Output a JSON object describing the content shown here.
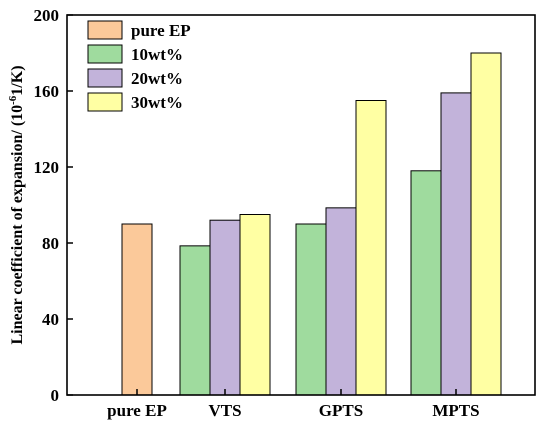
{
  "chart_data": {
    "type": "bar",
    "title": "",
    "xlabel": "",
    "ylabel": "Linear coefficient of expansion/ (10",
    "ylabel_sup": "-6",
    "ylabel_tail": "1/K)",
    "ylim": [
      0,
      200
    ],
    "yticks": [
      0,
      40,
      80,
      120,
      160,
      200
    ],
    "categories": [
      "pure EP",
      "VTS",
      "GPTS",
      "MPTS"
    ],
    "legend_position": "top-left",
    "grid": false,
    "series": [
      {
        "name": "pure EP",
        "color": "#FBC99A",
        "values": [
          90,
          null,
          null,
          null
        ]
      },
      {
        "name": "10wt%",
        "color": "#9FDB9E",
        "values": [
          null,
          78.5,
          90,
          118
        ]
      },
      {
        "name": "20wt%",
        "color": "#C2B3DA",
        "values": [
          null,
          92,
          98.5,
          159
        ]
      },
      {
        "name": "30wt%",
        "color": "#FFFFA3",
        "values": [
          null,
          95,
          155,
          180
        ]
      }
    ]
  }
}
